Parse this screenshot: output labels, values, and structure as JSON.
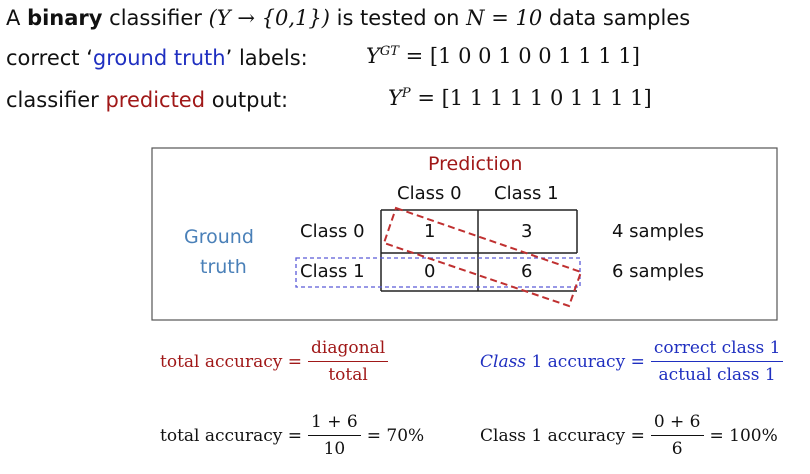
{
  "intro": {
    "line1": {
      "a": "A",
      "binary": "binary",
      "text1": "classifier",
      "math1": "(Y → {0,1})",
      "text2": "is tested on",
      "math2": "N = 10",
      "text3": "data samples"
    },
    "line2": {
      "pre": "correct ‘",
      "highlight": "ground truth",
      "post": "’ labels:",
      "var": "Y",
      "sup": "GT",
      "vector": "= [1 0 0 1 0 0 1 1 1 1]"
    },
    "line3": {
      "pre": "classifier",
      "highlight": "predicted",
      "post": "output:",
      "var": "Y",
      "sup": "P",
      "vector": "= [1 1 1 1 1 0 1 1 1 1]"
    }
  },
  "matrix": {
    "title": "Prediction",
    "col_headers": [
      "Class 0",
      "Class 1"
    ],
    "row_label": [
      "Ground",
      "truth"
    ],
    "row_headers": [
      "Class 0",
      "Class 1"
    ],
    "cells": [
      [
        "1",
        "3"
      ],
      [
        "0",
        "6"
      ]
    ],
    "row_totals": [
      "4 samples",
      "6 samples"
    ]
  },
  "formulas": {
    "total_def": {
      "label": "total accuracy =",
      "num": "diagonal",
      "den": "total"
    },
    "class1_def": {
      "label_var": "Class",
      "label_rest": "1 accuracy =",
      "num": "correct class 1",
      "den": "actual class 1"
    },
    "total_calc": {
      "label": "total accuracy =",
      "num": "1 + 6",
      "den": "10",
      "result": "= 70%"
    },
    "class1_calc": {
      "label": "Class 1 accuracy =",
      "num": "0 + 6",
      "den": "6",
      "result": "= 100%"
    }
  }
}
